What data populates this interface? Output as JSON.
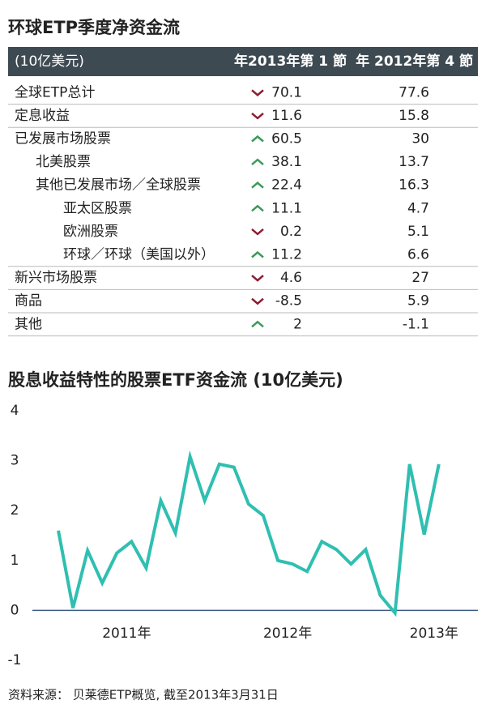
{
  "table": {
    "title": "环球ETP季度净资金流",
    "header": [
      "(10亿美元)",
      "年2013年第 1 節",
      "年 2012年第 4 節"
    ],
    "rows": [
      {
        "name": "全球ETP总计",
        "indent": 0,
        "trend": "down",
        "current": 70.1,
        "previous": 77.6
      },
      {
        "name": "定息收益",
        "indent": 0,
        "trend": "down",
        "current": 11.6,
        "previous": 15.8
      },
      {
        "name": "已发展市场股票",
        "indent": 0,
        "trend": "up",
        "current": 60.5,
        "previous": 30
      },
      {
        "name": "北美股票",
        "indent": 1,
        "trend": "up",
        "current": 38.1,
        "previous": 13.7
      },
      {
        "name": "其他已发展市场／全球股票",
        "indent": 1,
        "trend": "up",
        "current": 22.4,
        "previous": 16.3
      },
      {
        "name": "亚太区股票",
        "indent": 2,
        "trend": "up",
        "current": 11.1,
        "previous": 4.7
      },
      {
        "name": "欧洲股票",
        "indent": 2,
        "trend": "down",
        "current": 0.2,
        "previous": 5.1
      },
      {
        "name": "环球／环球（美国以外）",
        "indent": 2,
        "trend": "up",
        "current": 11.2,
        "previous": 6.6
      },
      {
        "name": "新兴市场股票",
        "indent": 0,
        "trend": "down",
        "current": 4.6,
        "previous": 27
      },
      {
        "name": "商品",
        "indent": 0,
        "trend": "down",
        "current": -8.5,
        "previous": 5.9
      },
      {
        "name": "其他",
        "indent": 0,
        "trend": "up",
        "current": 2,
        "previous": -1.1
      }
    ]
  },
  "chart_data": {
    "type": "line",
    "title": "股息收益特性的股票ETF资金流 (10亿美元)",
    "categories": [
      null,
      null,
      null,
      null,
      null,
      "2011年",
      null,
      null,
      null,
      null,
      null,
      null,
      null,
      null,
      null,
      null,
      "2012年",
      null,
      null,
      null,
      null,
      null,
      null,
      null,
      null,
      null,
      "2013年"
    ],
    "series": [
      {
        "name": null,
        "color": "#2fbfb1",
        "values": [
          1.6,
          0.05,
          1.2,
          0.55,
          1.15,
          1.38,
          0.85,
          2.2,
          1.55,
          3.08,
          2.2,
          2.93,
          2.87,
          2.13,
          1.9,
          1.0,
          0.93,
          0.78,
          1.38,
          1.22,
          0.93,
          1.22,
          0.3,
          -0.05,
          2.93,
          1.52,
          2.93
        ]
      }
    ],
    "ylim": [
      -1,
      4
    ],
    "yticks": [
      -1,
      0,
      1,
      2,
      3,
      4
    ],
    "grid": false
  },
  "source": "资料来源： 贝莱德ETP概览, 截至2013年3月31日"
}
